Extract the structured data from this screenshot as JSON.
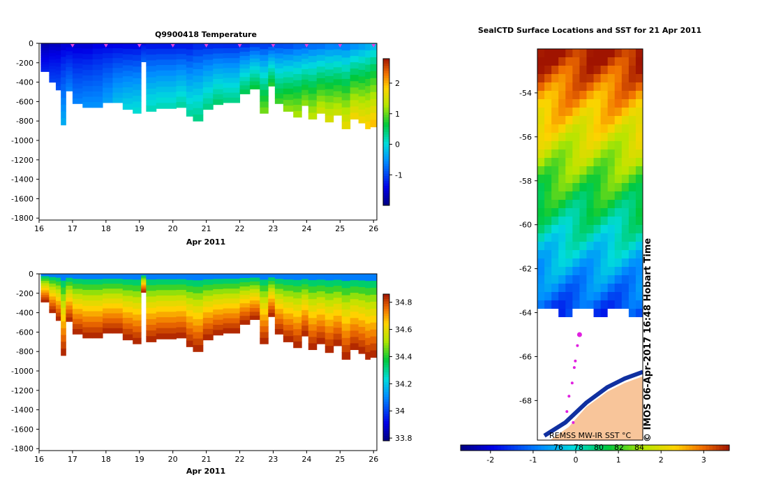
{
  "chart_data": [
    {
      "type": "heatmap",
      "title": "Q9900418  Temperature",
      "xlabel": "Apr 2011",
      "xlim": [
        16,
        26.1
      ],
      "ylim": [
        -1820,
        0
      ],
      "x_ticks": [
        "16",
        "17",
        "18",
        "19",
        "20",
        "21",
        "22",
        "23",
        "24",
        "25",
        "26"
      ],
      "y_ticks": [
        "0",
        "-200",
        "-400",
        "-600",
        "-800",
        "-1000",
        "-1200",
        "-1400",
        "-1600",
        "-1800"
      ],
      "colorbar": {
        "min": -2.0,
        "max": 2.8,
        "ticks": [
          "2",
          "1",
          "0",
          "-1"
        ]
      },
      "profile_markers_day": [
        17,
        18,
        19,
        20,
        21,
        22,
        23,
        24,
        25,
        26
      ],
      "profiles": [
        {
          "t": 16.05,
          "depth": 290,
          "surface": -1.8,
          "bottom": -1.2
        },
        {
          "t": 16.3,
          "depth": 400,
          "surface": -1.7,
          "bottom": -1.0
        },
        {
          "t": 16.5,
          "depth": 480,
          "surface": -1.7,
          "bottom": -0.9
        },
        {
          "t": 16.65,
          "depth": 840,
          "surface": -1.6,
          "bottom": -0.3
        },
        {
          "t": 16.8,
          "depth": 490,
          "surface": -1.6,
          "bottom": -0.6
        },
        {
          "t": 17.0,
          "depth": 620,
          "surface": -1.6,
          "bottom": -0.6
        },
        {
          "t": 17.3,
          "depth": 660,
          "surface": -1.6,
          "bottom": -0.5
        },
        {
          "t": 17.6,
          "depth": 660,
          "surface": -1.5,
          "bottom": -0.5
        },
        {
          "t": 17.9,
          "depth": 610,
          "surface": -1.5,
          "bottom": -0.4
        },
        {
          "t": 18.2,
          "depth": 610,
          "surface": -1.5,
          "bottom": -0.2
        },
        {
          "t": 18.5,
          "depth": 680,
          "surface": -1.5,
          "bottom": 0.0
        },
        {
          "t": 18.8,
          "depth": 720,
          "surface": -1.5,
          "bottom": 0.1
        },
        {
          "t": 19.05,
          "depth": 190,
          "surface": -1.4,
          "bottom": -0.8
        },
        {
          "t": 19.2,
          "depth": 700,
          "surface": -1.4,
          "bottom": 0.2
        },
        {
          "t": 19.5,
          "depth": 670,
          "surface": -1.4,
          "bottom": 0.2
        },
        {
          "t": 20.1,
          "depth": 660,
          "surface": -1.4,
          "bottom": 0.3
        },
        {
          "t": 20.4,
          "depth": 750,
          "surface": -1.4,
          "bottom": 0.3
        },
        {
          "t": 20.6,
          "depth": 800,
          "surface": -1.3,
          "bottom": 0.4
        },
        {
          "t": 20.9,
          "depth": 680,
          "surface": -1.3,
          "bottom": 0.4
        },
        {
          "t": 21.2,
          "depth": 630,
          "surface": -1.3,
          "bottom": 0.5
        },
        {
          "t": 21.5,
          "depth": 610,
          "surface": -1.3,
          "bottom": 0.4
        },
        {
          "t": 22.0,
          "depth": 520,
          "surface": -1.3,
          "bottom": 0.6
        },
        {
          "t": 22.3,
          "depth": 470,
          "surface": -1.2,
          "bottom": 0.7
        },
        {
          "t": 22.6,
          "depth": 720,
          "surface": -1.2,
          "bottom": 1.1
        },
        {
          "t": 22.85,
          "depth": 440,
          "surface": -1.2,
          "bottom": 0.8
        },
        {
          "t": 23.05,
          "depth": 620,
          "surface": -1.1,
          "bottom": 0.9
        },
        {
          "t": 23.3,
          "depth": 700,
          "surface": -1.1,
          "bottom": 1.2
        },
        {
          "t": 23.6,
          "depth": 760,
          "surface": -1.0,
          "bottom": 1.3
        },
        {
          "t": 23.85,
          "depth": 640,
          "surface": -1.0,
          "bottom": 1.2
        },
        {
          "t": 24.05,
          "depth": 780,
          "surface": -0.9,
          "bottom": 1.4
        },
        {
          "t": 24.3,
          "depth": 720,
          "surface": -0.9,
          "bottom": 1.5
        },
        {
          "t": 24.55,
          "depth": 810,
          "surface": -0.8,
          "bottom": 1.6
        },
        {
          "t": 24.8,
          "depth": 740,
          "surface": -0.8,
          "bottom": 1.5
        },
        {
          "t": 25.05,
          "depth": 880,
          "surface": -0.8,
          "bottom": 1.7
        },
        {
          "t": 25.3,
          "depth": 780,
          "surface": -0.7,
          "bottom": 1.8
        },
        {
          "t": 25.55,
          "depth": 820,
          "surface": -0.6,
          "bottom": 1.8
        },
        {
          "t": 25.75,
          "depth": 880,
          "surface": -0.5,
          "bottom": 1.9
        },
        {
          "t": 25.9,
          "depth": 860,
          "surface": -0.4,
          "bottom": 2.0
        }
      ]
    },
    {
      "type": "heatmap",
      "title": "",
      "xlabel": "Apr 2011",
      "xlim": [
        16,
        26.1
      ],
      "ylim": [
        -1820,
        0
      ],
      "x_ticks": [
        "16",
        "17",
        "18",
        "19",
        "20",
        "21",
        "22",
        "23",
        "24",
        "25",
        "26"
      ],
      "y_ticks": [
        "0",
        "-200",
        "-400",
        "-600",
        "-800",
        "-1000",
        "-1200",
        "-1400",
        "-1600",
        "-1800"
      ],
      "colorbar": {
        "min": 33.78,
        "max": 34.86,
        "ticks": [
          "34.8",
          "34.6",
          "34.4",
          "34.2",
          "34",
          "33.8"
        ]
      }
    },
    {
      "type": "heatmap",
      "title": "SealCTD Surface Locations and SST for 21 Apr 2011",
      "ylim": [
        -69.8,
        -52.0
      ],
      "y_ticks": [
        "-54",
        "-56",
        "-58",
        "-60",
        "-62",
        "-64",
        "-66",
        "-68"
      ],
      "colorbar": {
        "min": -2.7,
        "max": 3.6,
        "ticks": [
          "-2",
          "-1",
          "0",
          "1",
          "2",
          "3"
        ],
        "inner_labels": [
          "76",
          "78",
          "80",
          "82",
          "84"
        ]
      },
      "ice_edge_lat": -64.0,
      "seal_track": [
        {
          "lon_frac": 0.4,
          "lat": -65.0
        },
        {
          "lon_frac": 0.38,
          "lat": -65.5
        },
        {
          "lon_frac": 0.36,
          "lat": -66.2
        },
        {
          "lon_frac": 0.35,
          "lat": -66.5
        },
        {
          "lon_frac": 0.33,
          "lat": -67.2
        },
        {
          "lon_frac": 0.3,
          "lat": -67.8
        },
        {
          "lon_frac": 0.28,
          "lat": -68.5
        },
        {
          "lon_frac": 0.34,
          "lat": -69.0
        }
      ],
      "credit": "REMSS MW-IR SST °C",
      "watermark": "© IMOS 06-Apr-2017 16:48 Hobart Time"
    }
  ]
}
